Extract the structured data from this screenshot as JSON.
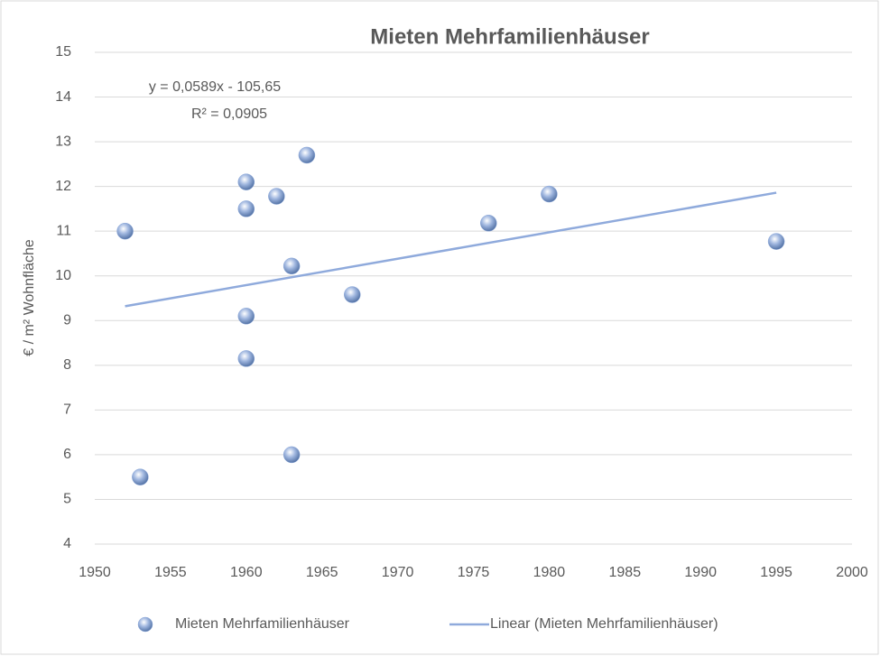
{
  "chart_data": {
    "type": "scatter",
    "title": "Mieten Mehrfamilienhäuser",
    "y_label": "€ / m² Wohnfläche",
    "annotations": [
      "y = 0,0589x - 105,65",
      "R² = 0,0905"
    ],
    "series": [
      {
        "name": "Mieten Mehrfamilienhäuser",
        "color": "#8eaadb",
        "x": [
          1952,
          1953,
          1960,
          1960,
          1960,
          1960,
          1962,
          1963,
          1963,
          1964,
          1967,
          1976,
          1980,
          1995
        ],
        "values": [
          11.0,
          5.5,
          12.1,
          11.5,
          9.1,
          8.15,
          11.78,
          10.22,
          6.0,
          12.7,
          9.58,
          11.18,
          11.83,
          10.77
        ]
      }
    ],
    "trendline": {
      "name": "Linear (Mieten Mehrfamilienhäuser)",
      "color": "#8faadc",
      "x": [
        1952,
        1995
      ],
      "values": [
        9.32,
        11.86
      ]
    },
    "xlim": [
      1950,
      2000
    ],
    "xticks": [
      1950,
      1955,
      1960,
      1965,
      1970,
      1975,
      1980,
      1985,
      1990,
      1995,
      2000
    ],
    "ylim": [
      4,
      15
    ],
    "yticks": [
      4,
      5,
      6,
      7,
      8,
      9,
      10,
      11,
      12,
      13,
      14,
      15
    ],
    "grid": true,
    "legend": "bottom"
  }
}
